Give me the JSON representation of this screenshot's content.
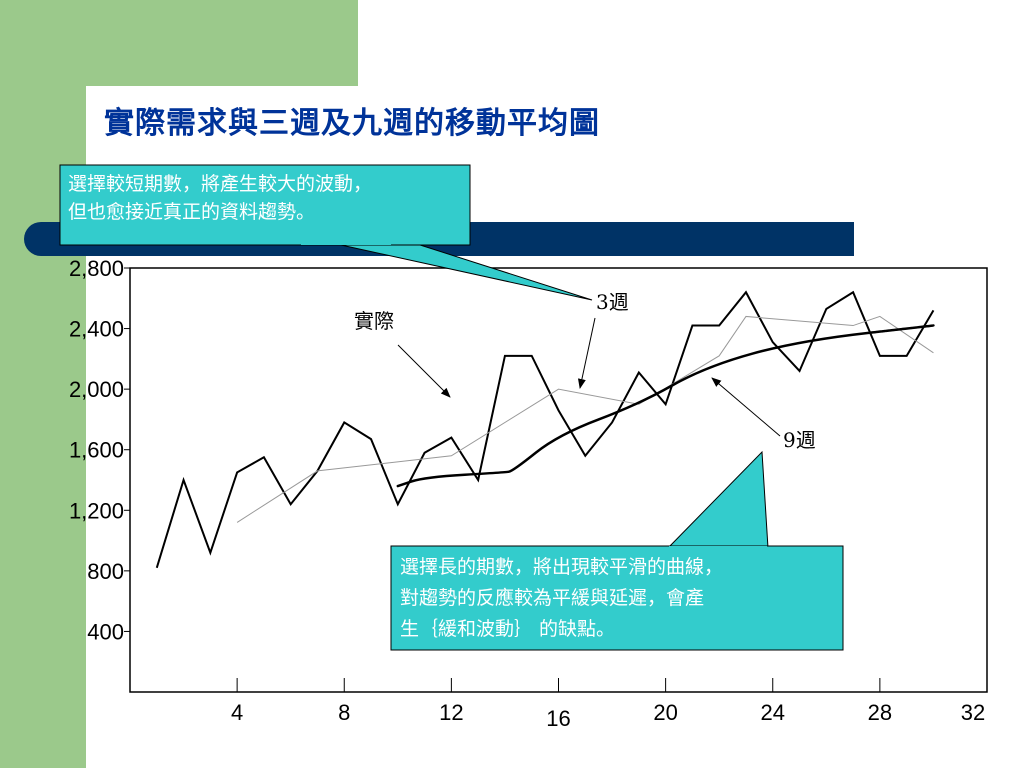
{
  "slide": {
    "title": "實際需求與三週及九週的移動平均圖"
  },
  "colors": {
    "green_bar": "#9bc98b",
    "navy_band": "#003366",
    "title": "#003399",
    "callout_fill": "#33cccc"
  },
  "callouts": {
    "top": "選擇較短期數，將產生較大的波動，\n但也愈接近真正的資料趨勢。",
    "bottom": "選擇長的期數，將出現較平滑的曲線，\n對趨勢的反應較為平緩與延遲，會產\n生｛緩和波動｝ 的缺點。"
  },
  "annotations": {
    "actual": "實際",
    "three_week": "3週",
    "nine_week": "9週"
  },
  "chart_data": {
    "type": "line",
    "title": "",
    "xlabel": "",
    "ylabel": "",
    "xlim": [
      0,
      32
    ],
    "ylim": [
      0,
      2800
    ],
    "x_ticks": [
      {
        "value": 4,
        "label": "4"
      },
      {
        "value": 8,
        "label": "8"
      },
      {
        "value": 12,
        "label": "12"
      },
      {
        "value": 16,
        "label": "16"
      },
      {
        "value": 20,
        "label": "20"
      },
      {
        "value": 24,
        "label": "24"
      },
      {
        "value": 28,
        "label": "28"
      },
      {
        "value": 32,
        "label": "32"
      }
    ],
    "y_ticks": [
      {
        "value": 400,
        "label": "400"
      },
      {
        "value": 800,
        "label": "800"
      },
      {
        "value": 1200,
        "label": "1,200"
      },
      {
        "value": 1600,
        "label": "1,600"
      },
      {
        "value": 2000,
        "label": "2,000"
      },
      {
        "value": 2400,
        "label": "2,400"
      },
      {
        "value": 2800,
        "label": "2,800"
      }
    ],
    "grid": false,
    "series": [
      {
        "name": "實際",
        "color": "#000000",
        "width": 2,
        "x": [
          1,
          2,
          3,
          4,
          5,
          6,
          7,
          8,
          9,
          10,
          11,
          12,
          13,
          14,
          15,
          16,
          17,
          18,
          19,
          20,
          21,
          22,
          23,
          24,
          25,
          26,
          27,
          28,
          29,
          30
        ],
        "y": [
          820,
          1400,
          920,
          1450,
          1550,
          1240,
          1460,
          1780,
          1670,
          1240,
          1580,
          1680,
          1400,
          2220,
          2220,
          1860,
          1560,
          1780,
          2110,
          1900,
          2420,
          2420,
          2640,
          2310,
          2120,
          2530,
          2640,
          2220,
          2220,
          2520
        ]
      },
      {
        "name": "3週",
        "color": "#999999",
        "width": 1,
        "x": [
          4,
          7,
          12,
          16,
          19,
          22,
          23,
          27,
          28,
          30
        ],
        "y": [
          1120,
          1460,
          1560,
          2000,
          1900,
          2220,
          2480,
          2420,
          2480,
          2240
        ]
      },
      {
        "name": "9週",
        "color": "#000000",
        "width": 2.5,
        "x": [
          10,
          11,
          14,
          14.3,
          16,
          19,
          21.5,
          25,
          30
        ],
        "y": [
          1360,
          1420,
          1450,
          1460,
          1700,
          1900,
          2150,
          2320,
          2420
        ]
      }
    ]
  }
}
